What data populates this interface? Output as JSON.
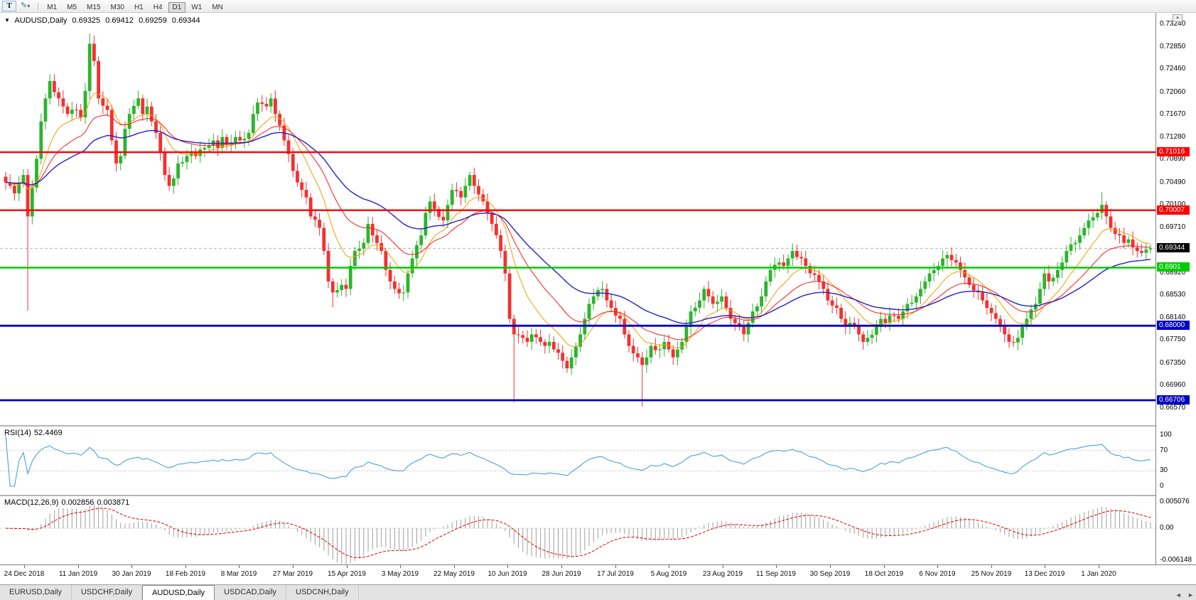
{
  "toolbar": {
    "text_tool": "T",
    "draw_tool_icon": "✎",
    "draw_tool_caret": "▾",
    "timeframes": [
      {
        "label": "M1",
        "active": false
      },
      {
        "label": "M5",
        "active": false
      },
      {
        "label": "M15",
        "active": false
      },
      {
        "label": "M30",
        "active": false
      },
      {
        "label": "H1",
        "active": false
      },
      {
        "label": "H4",
        "active": false
      },
      {
        "label": "D1",
        "active": true
      },
      {
        "label": "W1",
        "active": false
      },
      {
        "label": "MN",
        "active": false
      }
    ]
  },
  "chart": {
    "title": {
      "expander": "▼",
      "symbol_period": "AUDUSD,Daily",
      "open": "0.69325",
      "high": "0.69412",
      "low": "0.69259",
      "close": "0.69344"
    },
    "price_axis": {
      "ticks": [
        "0.73240",
        "0.72850",
        "0.72460",
        "0.72060",
        "0.71670",
        "0.71280",
        "0.70890",
        "0.70490",
        "0.70100",
        "0.69710",
        "0.68920",
        "0.68530",
        "0.68140",
        "0.67750",
        "0.67350",
        "0.66960",
        "0.66570"
      ]
    },
    "hlines": [
      {
        "price": 0.71016,
        "label": "0.71016",
        "color": "#ff0000",
        "weight": 2.4
      },
      {
        "price": 0.70007,
        "label": "0.70007",
        "color": "#ff0000",
        "weight": 2.4
      },
      {
        "price": 0.6901,
        "label": "0.6901",
        "color": "#00cc00",
        "weight": 2.4
      },
      {
        "price": 0.68,
        "label": "0.68000",
        "color": "#0000c0",
        "weight": 2.8
      },
      {
        "price": 0.66706,
        "label": "0.66706",
        "color": "#0000c0",
        "weight": 2.8
      }
    ],
    "current_price": {
      "value": 0.69344,
      "label": "0.69344",
      "badge_color": "#000000"
    },
    "scroll_arrow": "▲"
  },
  "rsi": {
    "name": "RSI(14)",
    "value": "52.4469",
    "label": "RSI(14) 52.4469",
    "period": 14,
    "color": "#4da0d8",
    "levels": [
      70,
      30
    ],
    "ticks": [
      "100",
      "70",
      "30",
      "0"
    ]
  },
  "macd": {
    "name": "MACD(12,26,9)",
    "value_main": "0.002856",
    "value_signal": "0.003871",
    "label": "MACD(12,26,9) 0.002856 0.003871",
    "fast": 12,
    "slow": 26,
    "signal": 9,
    "ticks": [
      "0.005076",
      "0.00",
      "-0.006148"
    ],
    "range": {
      "max": 0.005076,
      "min": -0.006148
    }
  },
  "date_axis": {
    "labels": [
      "24 Dec 2018",
      "11 Jan 2019",
      "30 Jan 2019",
      "18 Feb 2019",
      "8 Mar 2019",
      "27 Mar 2019",
      "15 Apr 2019",
      "3 May 2019",
      "22 May 2019",
      "10 Jun 2019",
      "28 Jun 2019",
      "17 Jul 2019",
      "5 Aug 2019",
      "23 Aug 2019",
      "11 Sep 2019",
      "30 Sep 2019",
      "18 Oct 2019",
      "6 Nov 2019",
      "25 Nov 2019",
      "13 Dec 2019",
      "1 Jan 2020"
    ]
  },
  "tabs": {
    "items": [
      {
        "label": "EURUSD,Daily",
        "active": false
      },
      {
        "label": "USDCHF,Daily",
        "active": false
      },
      {
        "label": "AUDUSD,Daily",
        "active": true
      },
      {
        "label": "USDCAD,Daily",
        "active": false
      },
      {
        "label": "USDCNH,Daily",
        "active": false
      }
    ],
    "scroll_left": "◄",
    "scroll_right": "►"
  },
  "chart_data": {
    "type": "candlestick+indicators",
    "symbol": "AUDUSD",
    "period": "Daily",
    "ohlc_last": {
      "open": 0.69325,
      "high": 0.69412,
      "low": 0.69259,
      "close": 0.69344
    },
    "price_scale": {
      "p_top": 0.7324,
      "p_bottom": 0.6657
    },
    "num_candles": 260,
    "up_color": "#2db42d",
    "down_color": "#f23131",
    "moving_averages": [
      {
        "period": 10,
        "color": "#f0a000",
        "width": 1
      },
      {
        "period": 21,
        "color": "#ff1a1a",
        "width": 1
      },
      {
        "period": 40,
        "color": "#2222c8",
        "width": 1.4
      }
    ],
    "close_anchors": [
      [
        0,
        0.7049
      ],
      [
        2,
        0.703
      ],
      [
        4,
        0.7062
      ],
      [
        5,
        0.699
      ],
      [
        6,
        0.704
      ],
      [
        7,
        0.709
      ],
      [
        8,
        0.7155
      ],
      [
        9,
        0.7195
      ],
      [
        10,
        0.7225
      ],
      [
        12,
        0.7195
      ],
      [
        13,
        0.7181
      ],
      [
        14,
        0.7168
      ],
      [
        16,
        0.7175
      ],
      [
        17,
        0.7162
      ],
      [
        18,
        0.7208
      ],
      [
        19,
        0.729
      ],
      [
        20,
        0.726
      ],
      [
        21,
        0.7195
      ],
      [
        23,
        0.7175
      ],
      [
        24,
        0.7122
      ],
      [
        25,
        0.7082
      ],
      [
        26,
        0.7095
      ],
      [
        27,
        0.7142
      ],
      [
        28,
        0.7168
      ],
      [
        30,
        0.7195
      ],
      [
        31,
        0.7168
      ],
      [
        32,
        0.7181
      ],
      [
        33,
        0.7155
      ],
      [
        34,
        0.7135
      ],
      [
        36,
        0.7062
      ],
      [
        37,
        0.7043
      ],
      [
        38,
        0.7056
      ],
      [
        39,
        0.7082
      ],
      [
        41,
        0.7095
      ],
      [
        42,
        0.7102
      ],
      [
        43,
        0.7095
      ],
      [
        45,
        0.7109
      ],
      [
        47,
        0.7122
      ],
      [
        48,
        0.7109
      ],
      [
        49,
        0.7128
      ],
      [
        50,
        0.7115
      ],
      [
        52,
        0.7128
      ],
      [
        53,
        0.7122
      ],
      [
        55,
        0.7135
      ],
      [
        56,
        0.7168
      ],
      [
        57,
        0.7188
      ],
      [
        59,
        0.7181
      ],
      [
        60,
        0.7195
      ],
      [
        61,
        0.7168
      ],
      [
        62,
        0.7148
      ],
      [
        63,
        0.7122
      ],
      [
        65,
        0.7069
      ],
      [
        66,
        0.7049
      ],
      [
        67,
        0.7036
      ],
      [
        68,
        0.7023
      ],
      [
        69,
        0.699
      ],
      [
        71,
        0.697
      ],
      [
        72,
        0.693
      ],
      [
        73,
        0.6877
      ],
      [
        74,
        0.6858
      ],
      [
        76,
        0.6871
      ],
      [
        77,
        0.6864
      ],
      [
        78,
        0.6904
      ],
      [
        79,
        0.693
      ],
      [
        81,
        0.6944
      ],
      [
        82,
        0.6977
      ],
      [
        83,
        0.6957
      ],
      [
        85,
        0.693
      ],
      [
        86,
        0.6897
      ],
      [
        87,
        0.6877
      ],
      [
        88,
        0.6864
      ],
      [
        90,
        0.6858
      ],
      [
        91,
        0.6891
      ],
      [
        92,
        0.6917
      ],
      [
        94,
        0.6957
      ],
      [
        95,
        0.6996
      ],
      [
        96,
        0.7016
      ],
      [
        97,
        0.7003
      ],
      [
        99,
        0.6983
      ],
      [
        100,
        0.701
      ],
      [
        101,
        0.7036
      ],
      [
        103,
        0.7023
      ],
      [
        104,
        0.7043
      ],
      [
        105,
        0.7062
      ],
      [
        106,
        0.7043
      ],
      [
        108,
        0.7016
      ],
      [
        109,
        0.6996
      ],
      [
        110,
        0.6977
      ],
      [
        112,
        0.693
      ],
      [
        113,
        0.6891
      ],
      [
        114,
        0.6812
      ],
      [
        115,
        0.6785
      ],
      [
        117,
        0.6779
      ],
      [
        118,
        0.6772
      ],
      [
        119,
        0.6785
      ],
      [
        121,
        0.6772
      ],
      [
        122,
        0.6765
      ],
      [
        123,
        0.6772
      ],
      [
        124,
        0.6759
      ],
      [
        126,
        0.6739
      ],
      [
        127,
        0.6726
      ],
      [
        128,
        0.6745
      ],
      [
        130,
        0.6785
      ],
      [
        131,
        0.6812
      ],
      [
        132,
        0.6838
      ],
      [
        133,
        0.6851
      ],
      [
        135,
        0.6864
      ],
      [
        136,
        0.6844
      ],
      [
        137,
        0.6831
      ],
      [
        139,
        0.6812
      ],
      [
        140,
        0.6785
      ],
      [
        141,
        0.6765
      ],
      [
        142,
        0.6752
      ],
      [
        144,
        0.6732
      ],
      [
        145,
        0.6745
      ],
      [
        146,
        0.6765
      ],
      [
        148,
        0.6759
      ],
      [
        149,
        0.6772
      ],
      [
        150,
        0.6759
      ],
      [
        151,
        0.6745
      ],
      [
        153,
        0.6772
      ],
      [
        154,
        0.6798
      ],
      [
        155,
        0.6825
      ],
      [
        157,
        0.6844
      ],
      [
        158,
        0.6864
      ],
      [
        159,
        0.6851
      ],
      [
        160,
        0.6838
      ],
      [
        162,
        0.6851
      ],
      [
        163,
        0.6831
      ],
      [
        164,
        0.6812
      ],
      [
        166,
        0.6798
      ],
      [
        167,
        0.6785
      ],
      [
        168,
        0.6805
      ],
      [
        169,
        0.6825
      ],
      [
        171,
        0.6851
      ],
      [
        172,
        0.6877
      ],
      [
        173,
        0.6897
      ],
      [
        175,
        0.691
      ],
      [
        176,
        0.6904
      ],
      [
        177,
        0.6917
      ],
      [
        178,
        0.693
      ],
      [
        180,
        0.6917
      ],
      [
        181,
        0.6904
      ],
      [
        182,
        0.6891
      ],
      [
        184,
        0.6877
      ],
      [
        185,
        0.6864
      ],
      [
        186,
        0.6844
      ],
      [
        188,
        0.6831
      ],
      [
        189,
        0.6812
      ],
      [
        190,
        0.6798
      ],
      [
        191,
        0.6805
      ],
      [
        193,
        0.6785
      ],
      [
        194,
        0.6772
      ],
      [
        195,
        0.6779
      ],
      [
        197,
        0.6798
      ],
      [
        198,
        0.6812
      ],
      [
        199,
        0.6805
      ],
      [
        200,
        0.6818
      ],
      [
        202,
        0.6812
      ],
      [
        203,
        0.6825
      ],
      [
        204,
        0.6838
      ],
      [
        206,
        0.6851
      ],
      [
        207,
        0.6864
      ],
      [
        208,
        0.6877
      ],
      [
        209,
        0.6891
      ],
      [
        211,
        0.6904
      ],
      [
        212,
        0.6917
      ],
      [
        213,
        0.6923
      ],
      [
        215,
        0.691
      ],
      [
        216,
        0.6897
      ],
      [
        217,
        0.6884
      ],
      [
        218,
        0.6871
      ],
      [
        220,
        0.6858
      ],
      [
        221,
        0.6844
      ],
      [
        222,
        0.6831
      ],
      [
        224,
        0.6812
      ],
      [
        225,
        0.6798
      ],
      [
        226,
        0.6785
      ],
      [
        227,
        0.6772
      ],
      [
        229,
        0.6779
      ],
      [
        230,
        0.6798
      ],
      [
        231,
        0.6812
      ],
      [
        233,
        0.6838
      ],
      [
        234,
        0.6864
      ],
      [
        235,
        0.6891
      ],
      [
        236,
        0.6877
      ],
      [
        238,
        0.6897
      ],
      [
        239,
        0.691
      ],
      [
        240,
        0.693
      ],
      [
        242,
        0.6944
      ],
      [
        243,
        0.6957
      ],
      [
        244,
        0.697
      ],
      [
        245,
        0.6983
      ],
      [
        247,
        0.6996
      ],
      [
        248,
        0.701
      ],
      [
        249,
        0.699
      ],
      [
        250,
        0.697
      ],
      [
        252,
        0.6957
      ],
      [
        253,
        0.6944
      ],
      [
        254,
        0.695
      ],
      [
        255,
        0.6936
      ],
      [
        256,
        0.693
      ],
      [
        258,
        0.69325
      ],
      [
        259,
        0.69344
      ]
    ],
    "wick_overrides": [
      {
        "i": 5,
        "low": 0.6826
      },
      {
        "i": 19,
        "high": 0.7308
      },
      {
        "i": 74,
        "low": 0.6832
      },
      {
        "i": 105,
        "high": 0.7068
      },
      {
        "i": 115,
        "low": 0.6667
      },
      {
        "i": 144,
        "low": 0.666
      },
      {
        "i": 248,
        "high": 0.7032
      },
      {
        "i": 259,
        "high": 0.69412,
        "low": 0.69259
      }
    ]
  }
}
